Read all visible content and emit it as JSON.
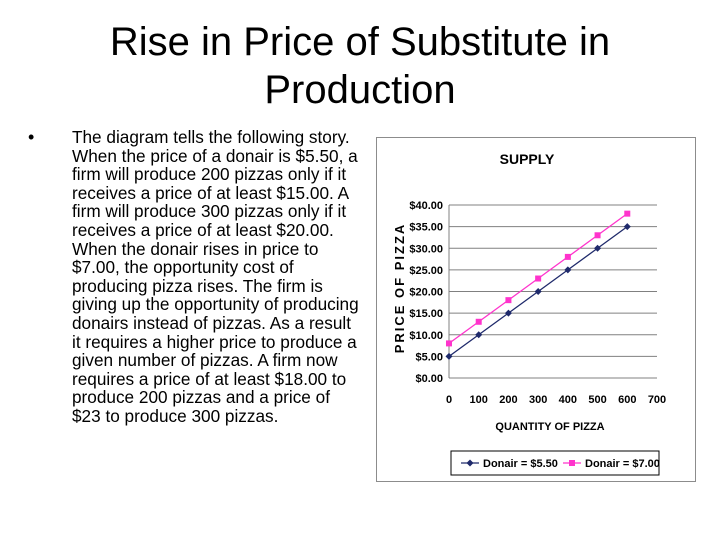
{
  "slide": {
    "title": "Rise in Price of Substitute in Production",
    "bullet_marker": "•",
    "bullet_text": "The diagram tells the following story.  When the price of a donair is $5.50, a firm will produce 200 pizzas only if it receives a price of at least $15.00. A firm will produce 300 pizzas only if it receives a price of at least $20.00.  When the donair rises in price to $7.00, the opportunity cost of producing pizza rises. The firm is giving up the opportunity of producing donairs instead of pizzas. As a result it requires a higher price to produce a given number of pizzas. A firm now requires a price of at least $18.00 to produce 200 pizzas and a price of $23 to produce 300 pizzas."
  },
  "chart_data": {
    "type": "line",
    "title": "SUPPLY",
    "xlabel": "QUANTITY OF PIZZA",
    "ylabel": "PRICE OF PIZZA",
    "xlim": [
      0,
      700
    ],
    "ylim": [
      0,
      40
    ],
    "x_ticks": [
      "0",
      "100",
      "200",
      "300",
      "400",
      "500",
      "600",
      "700"
    ],
    "y_ticks": [
      "$0.00",
      "$5.00",
      "$10.00",
      "$15.00",
      "$20.00",
      "$25.00",
      "$30.00",
      "$35.00",
      "$40.00"
    ],
    "legend_position": "bottom",
    "series": [
      {
        "name": "Donair = $5.50",
        "color": "#1f2a6b",
        "marker": "diamond",
        "x": [
          0,
          100,
          200,
          300,
          400,
          500,
          600
        ],
        "values": [
          5,
          10,
          15,
          20,
          25,
          30,
          35
        ]
      },
      {
        "name": "Donair = $7.00",
        "color": "#ff33cc",
        "marker": "square",
        "x": [
          0,
          100,
          200,
          300,
          400,
          500,
          600
        ],
        "values": [
          8,
          13,
          18,
          23,
          28,
          33,
          38
        ]
      }
    ]
  }
}
